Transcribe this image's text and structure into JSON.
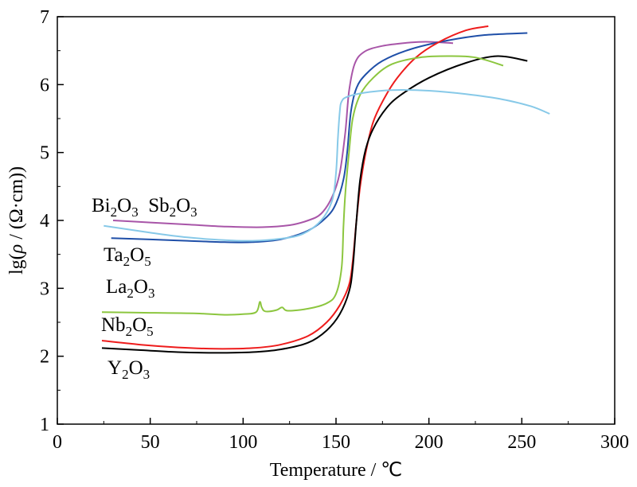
{
  "chart_data": {
    "type": "line",
    "title": "",
    "xlabel": "Temperature / ℃",
    "ylabel_prefix": "lg(",
    "ylabel_rho": "ρ",
    "ylabel_suffix": " / (Ω·cm))",
    "xlim": [
      0,
      300
    ],
    "ylim": [
      1,
      7
    ],
    "xticks": [
      0,
      50,
      100,
      150,
      200,
      250,
      300
    ],
    "yticks": [
      1,
      2,
      3,
      4,
      5,
      6,
      7
    ],
    "grid": false,
    "legend": "none",
    "series": [
      {
        "name": "Bi2O3",
        "color": "#a855a8",
        "points": [
          [
            30,
            4.0
          ],
          [
            50,
            3.97
          ],
          [
            70,
            3.94
          ],
          [
            90,
            3.91
          ],
          [
            110,
            3.9
          ],
          [
            125,
            3.93
          ],
          [
            135,
            4.0
          ],
          [
            142,
            4.1
          ],
          [
            148,
            4.35
          ],
          [
            152,
            4.7
          ],
          [
            155,
            5.3
          ],
          [
            157,
            5.9
          ],
          [
            160,
            6.3
          ],
          [
            165,
            6.48
          ],
          [
            175,
            6.57
          ],
          [
            190,
            6.62
          ],
          [
            200,
            6.63
          ],
          [
            213,
            6.61
          ]
        ]
      },
      {
        "name": "Ta2O5",
        "color": "#1f4fa8",
        "points": [
          [
            29,
            3.74
          ],
          [
            50,
            3.72
          ],
          [
            70,
            3.7
          ],
          [
            90,
            3.68
          ],
          [
            105,
            3.68
          ],
          [
            120,
            3.72
          ],
          [
            135,
            3.85
          ],
          [
            145,
            4.05
          ],
          [
            150,
            4.25
          ],
          [
            154,
            4.6
          ],
          [
            156,
            5.0
          ],
          [
            158,
            5.6
          ],
          [
            161,
            5.95
          ],
          [
            166,
            6.15
          ],
          [
            175,
            6.35
          ],
          [
            190,
            6.52
          ],
          [
            210,
            6.65
          ],
          [
            230,
            6.73
          ],
          [
            253,
            6.76
          ]
        ]
      },
      {
        "name": "Nb2O5",
        "color": "#ee1c1c",
        "points": [
          [
            24,
            2.23
          ],
          [
            45,
            2.17
          ],
          [
            65,
            2.13
          ],
          [
            85,
            2.11
          ],
          [
            105,
            2.12
          ],
          [
            120,
            2.17
          ],
          [
            135,
            2.3
          ],
          [
            145,
            2.5
          ],
          [
            152,
            2.75
          ],
          [
            157,
            3.05
          ],
          [
            159,
            3.4
          ],
          [
            161,
            4.0
          ],
          [
            163,
            4.5
          ],
          [
            166,
            5.0
          ],
          [
            170,
            5.45
          ],
          [
            176,
            5.8
          ],
          [
            183,
            6.1
          ],
          [
            193,
            6.4
          ],
          [
            205,
            6.62
          ],
          [
            220,
            6.8
          ],
          [
            232,
            6.86
          ]
        ]
      },
      {
        "name": "Y2O3",
        "color": "#000000",
        "points": [
          [
            24,
            2.12
          ],
          [
            45,
            2.09
          ],
          [
            65,
            2.06
          ],
          [
            85,
            2.05
          ],
          [
            105,
            2.06
          ],
          [
            120,
            2.1
          ],
          [
            135,
            2.2
          ],
          [
            145,
            2.38
          ],
          [
            152,
            2.62
          ],
          [
            157,
            2.95
          ],
          [
            159,
            3.3
          ],
          [
            161,
            4.0
          ],
          [
            163,
            4.6
          ],
          [
            166,
            5.05
          ],
          [
            170,
            5.35
          ],
          [
            177,
            5.65
          ],
          [
            185,
            5.85
          ],
          [
            200,
            6.1
          ],
          [
            220,
            6.32
          ],
          [
            237,
            6.42
          ],
          [
            253,
            6.35
          ]
        ]
      },
      {
        "name": "La2O3",
        "color": "#8cc63f",
        "points": [
          [
            24,
            2.65
          ],
          [
            50,
            2.64
          ],
          [
            75,
            2.63
          ],
          [
            90,
            2.61
          ],
          [
            100,
            2.62
          ],
          [
            107,
            2.65
          ],
          [
            109,
            2.8
          ],
          [
            110,
            2.72
          ],
          [
            112,
            2.66
          ],
          [
            118,
            2.68
          ],
          [
            121,
            2.72
          ],
          [
            124,
            2.67
          ],
          [
            135,
            2.7
          ],
          [
            145,
            2.78
          ],
          [
            150,
            2.92
          ],
          [
            153,
            3.3
          ],
          [
            154,
            3.9
          ],
          [
            155,
            4.4
          ],
          [
            157,
            5.0
          ],
          [
            159,
            5.5
          ],
          [
            163,
            5.85
          ],
          [
            170,
            6.1
          ],
          [
            180,
            6.3
          ],
          [
            195,
            6.4
          ],
          [
            210,
            6.42
          ],
          [
            225,
            6.4
          ],
          [
            240,
            6.28
          ]
        ]
      },
      {
        "name": "Sb2O3",
        "color": "#87c9e8",
        "points": [
          [
            25,
            3.92
          ],
          [
            50,
            3.82
          ],
          [
            70,
            3.75
          ],
          [
            90,
            3.71
          ],
          [
            105,
            3.7
          ],
          [
            120,
            3.73
          ],
          [
            132,
            3.8
          ],
          [
            142,
            4.0
          ],
          [
            148,
            4.3
          ],
          [
            150,
            4.7
          ],
          [
            151,
            5.2
          ],
          [
            152,
            5.6
          ],
          [
            153,
            5.75
          ],
          [
            156,
            5.82
          ],
          [
            165,
            5.88
          ],
          [
            180,
            5.92
          ],
          [
            200,
            5.91
          ],
          [
            220,
            5.86
          ],
          [
            240,
            5.78
          ],
          [
            255,
            5.68
          ],
          [
            265,
            5.57
          ]
        ]
      }
    ],
    "annotations": {
      "bi_sb": {
        "base1": "Bi",
        "sub1": "2",
        "mid1": "O",
        "sub2": "3",
        "gap": "  ",
        "base2": "Sb",
        "sub3": "2",
        "mid2": "O",
        "sub4": "3"
      },
      "ta": {
        "base": "Ta",
        "sub1": "2",
        "mid": "O",
        "sub2": "5"
      },
      "la": {
        "base": "La",
        "sub1": "2",
        "mid": "O",
        "sub2": "3"
      },
      "nb": {
        "base": "Nb",
        "sub1": "2",
        "mid": "O",
        "sub2": "5"
      },
      "y": {
        "base": "Y",
        "sub1": "2",
        "mid": "O",
        "sub2": "3"
      }
    }
  }
}
